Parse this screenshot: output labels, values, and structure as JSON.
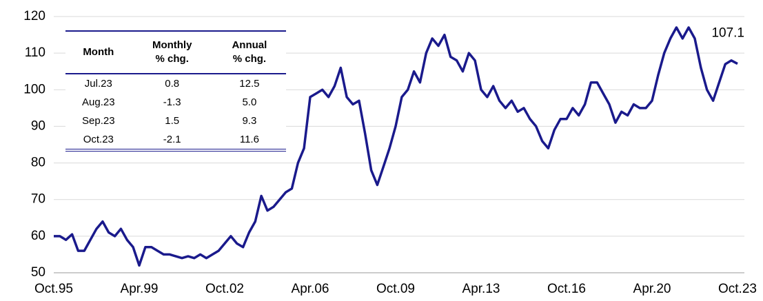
{
  "chart_data": {
    "type": "line",
    "categories": [
      "Oct.95",
      null,
      null,
      null,
      null,
      null,
      null,
      null,
      null,
      null,
      null,
      null,
      null,
      null,
      "Apr.99",
      null,
      null,
      null,
      null,
      null,
      null,
      null,
      null,
      null,
      null,
      null,
      null,
      null,
      "Oct.02",
      null,
      null,
      null,
      null,
      null,
      null,
      null,
      null,
      null,
      null,
      null,
      null,
      null,
      "Apr.06",
      null,
      null,
      null,
      null,
      null,
      null,
      null,
      null,
      null,
      null,
      null,
      null,
      null,
      "Oct.09",
      null,
      null,
      null,
      null,
      null,
      null,
      null,
      null,
      null,
      null,
      null,
      null,
      null,
      "Apr.13",
      null,
      null,
      null,
      null,
      null,
      null,
      null,
      null,
      null,
      null,
      null,
      null,
      null,
      "Oct.16",
      null,
      null,
      null,
      null,
      null,
      null,
      null,
      null,
      null,
      null,
      null,
      null,
      null,
      "Apr.20",
      null,
      null,
      null,
      null,
      null,
      null,
      null,
      null,
      null,
      null,
      null,
      null,
      null,
      "Oct.23"
    ],
    "series": [
      {
        "color": "#1a1a8c",
        "values": [
          60,
          60,
          59,
          60.5,
          56,
          56,
          59,
          62,
          64,
          61,
          60,
          62,
          59,
          57,
          52,
          57,
          57,
          56,
          55,
          55,
          54.5,
          54,
          54.5,
          54,
          55,
          54,
          55,
          56,
          58,
          60,
          58,
          57,
          61,
          64,
          71,
          67,
          68,
          70,
          72,
          73,
          80,
          84,
          98,
          99,
          100,
          98,
          101,
          106,
          98,
          96,
          97,
          88,
          78,
          74,
          79,
          84,
          90,
          98,
          100,
          105,
          102,
          110,
          114,
          112,
          115,
          109,
          108,
          105,
          110,
          108,
          100,
          98,
          101,
          97,
          95,
          97,
          94,
          95,
          92,
          90,
          86,
          84,
          89,
          92,
          92,
          95,
          93,
          96,
          102,
          102,
          99,
          96,
          91,
          94,
          93,
          96,
          95,
          95,
          97,
          104,
          110,
          114,
          117,
          114,
          117,
          114,
          106,
          100,
          97,
          102,
          107,
          108,
          107.1
        ]
      }
    ],
    "end_label": "107.1",
    "ylim": [
      50,
      120
    ],
    "yticks": [
      50,
      60,
      70,
      80,
      90,
      100,
      110,
      120
    ],
    "grid": true,
    "table": {
      "header": [
        [
          "Month"
        ],
        [
          "Monthly",
          "% chg."
        ],
        [
          "Annual",
          "% chg."
        ]
      ],
      "rows": [
        [
          "Jul.23",
          "0.8",
          "12.5"
        ],
        [
          "Aug.23",
          "-1.3",
          "5.0"
        ],
        [
          "Sep.23",
          "1.5",
          "9.3"
        ],
        [
          "Oct.23",
          "-2.1",
          "11.6"
        ]
      ]
    }
  }
}
